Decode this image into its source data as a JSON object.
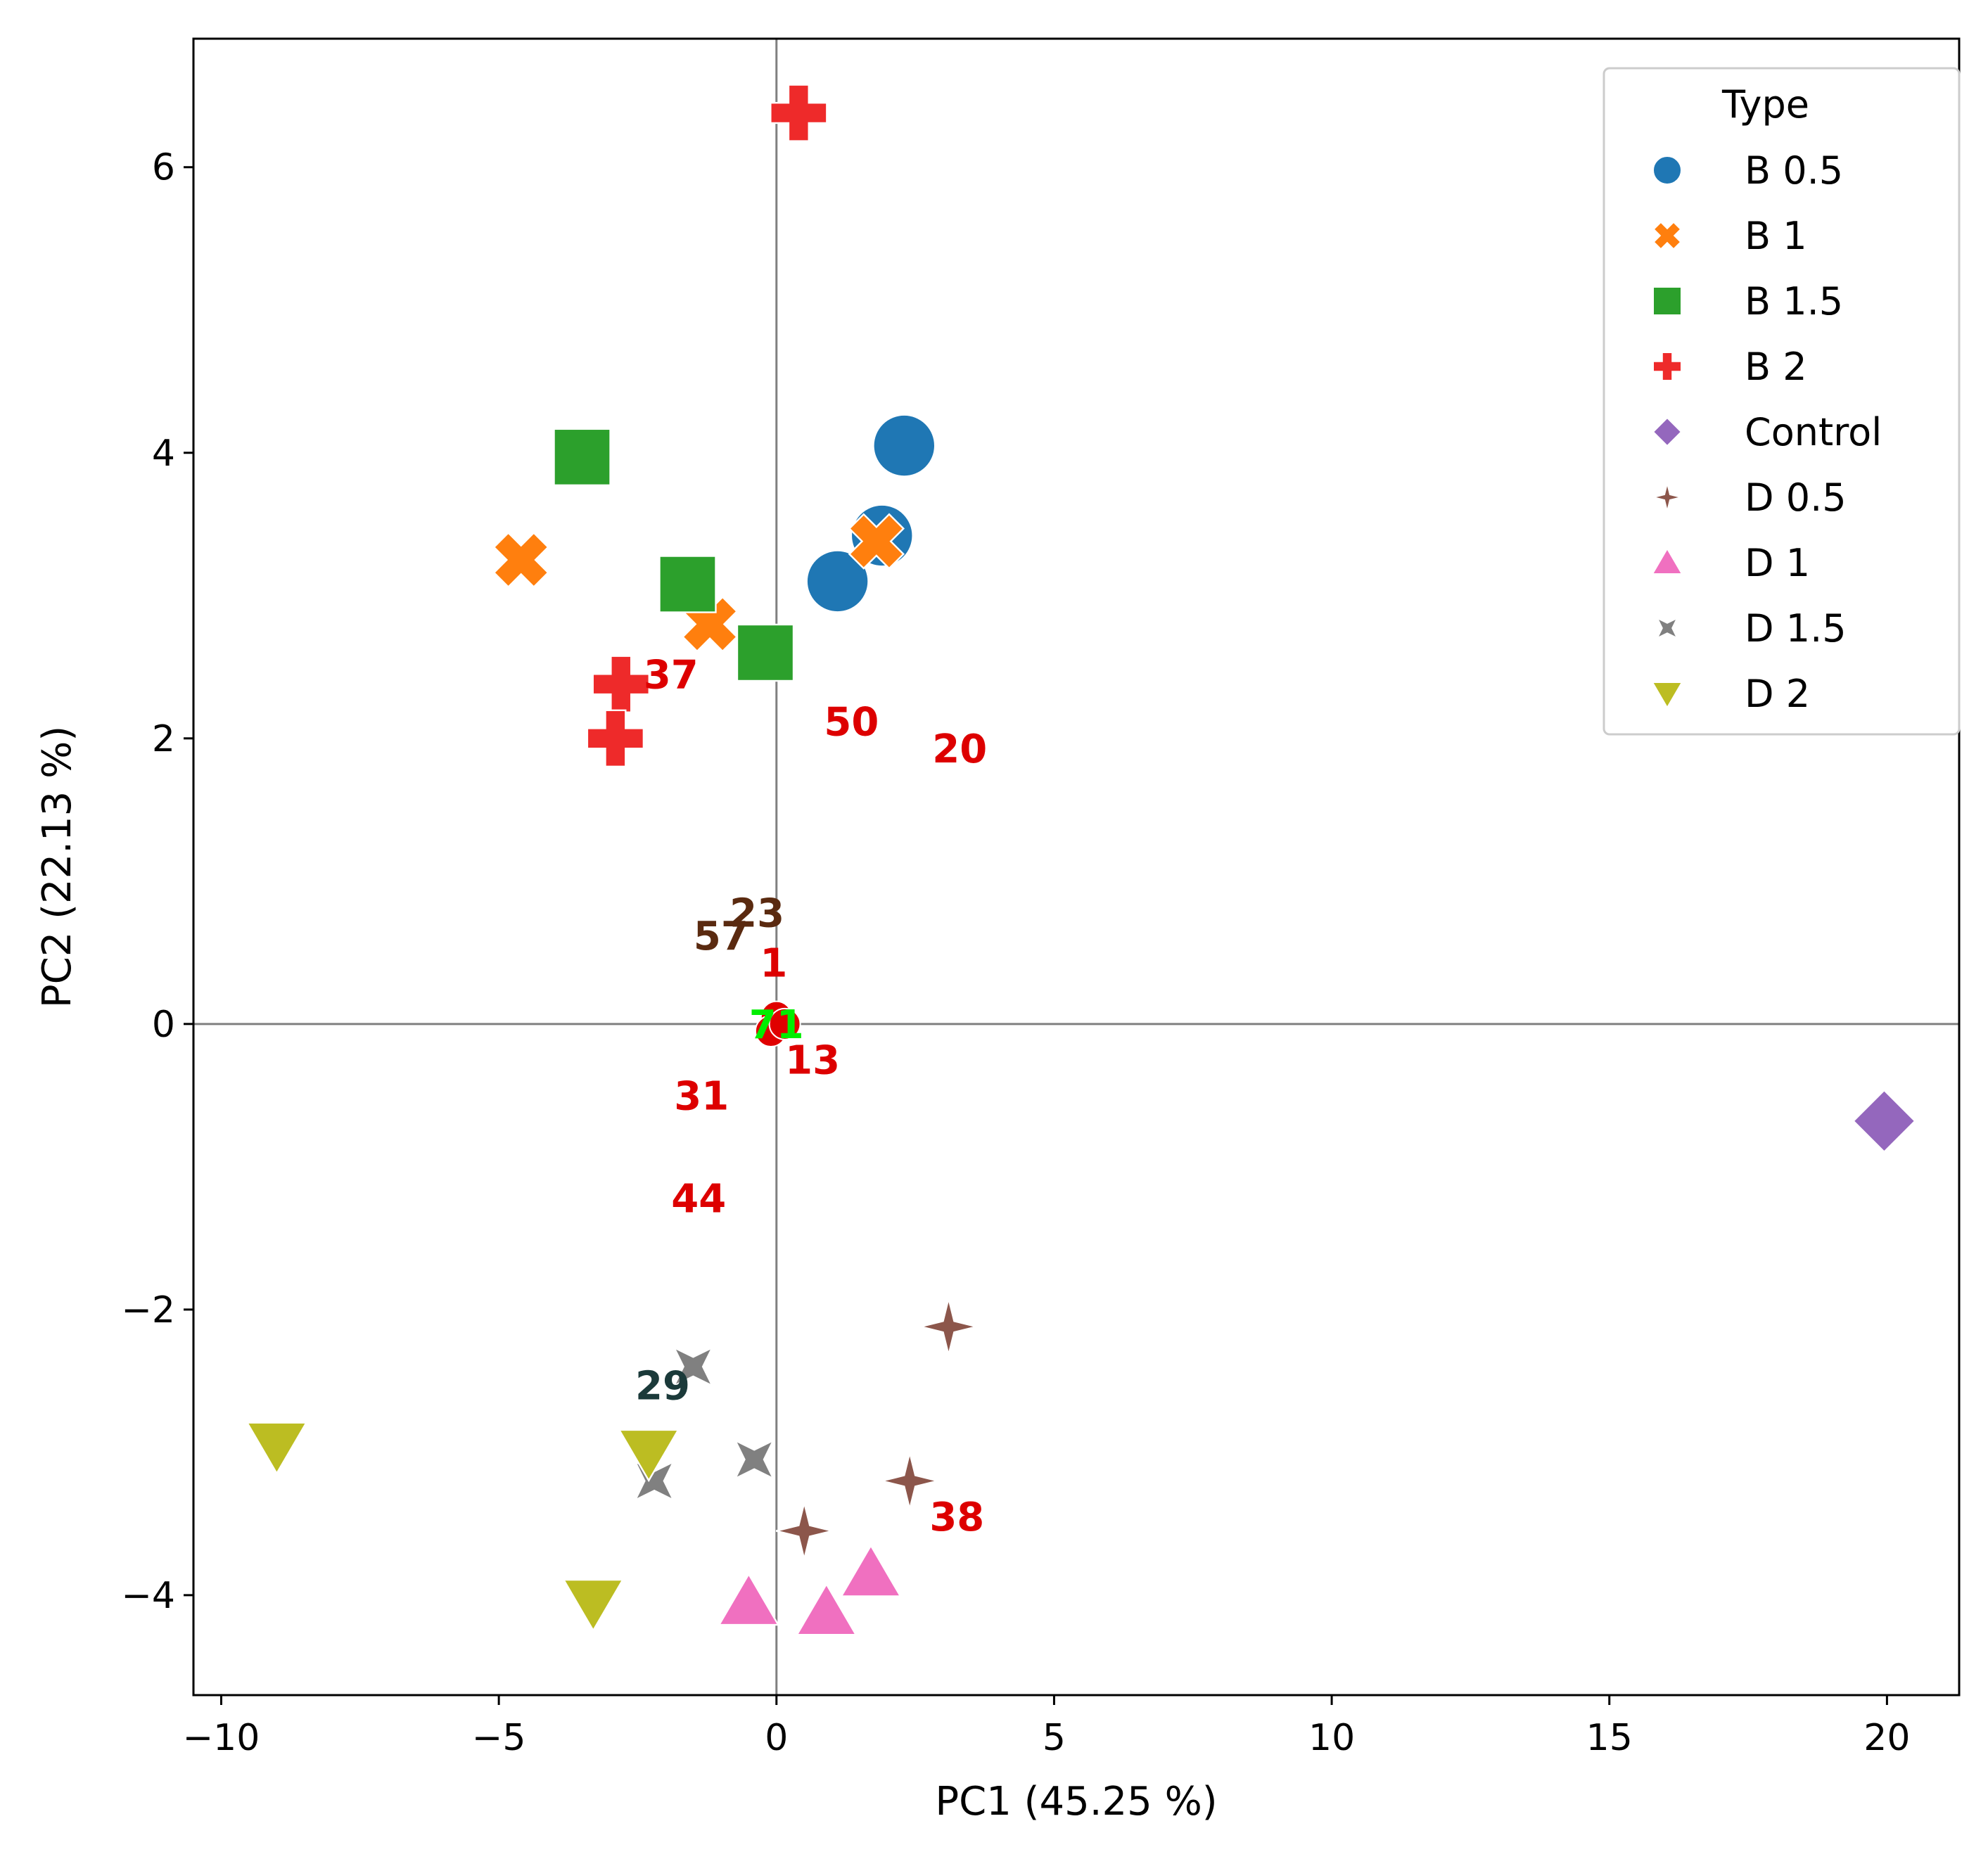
{
  "chart_data": {
    "type": "scatter",
    "xlabel": "PC1 (45.25 %)",
    "ylabel": "PC2 (22.13 %)",
    "xlim": [
      -10.5,
      21.3
    ],
    "ylim": [
      -4.7,
      6.9
    ],
    "xticks": [
      -10,
      -5,
      0,
      5,
      10,
      15,
      20
    ],
    "yticks": [
      -4,
      -2,
      0,
      2,
      4,
      6
    ],
    "xtick_labels": [
      "−10",
      "−5",
      "0",
      "5",
      "10",
      "15",
      "20"
    ],
    "ytick_labels": [
      "−4",
      "−2",
      "0",
      "2",
      "4",
      "6"
    ],
    "reference_lines": {
      "x": 0,
      "y": 0
    },
    "legend": {
      "title": "Type",
      "placement": "top-right"
    },
    "series": [
      {
        "name": "B 0.5",
        "marker": "circle",
        "color": "#1f77b4",
        "points": [
          [
            2.3,
            4.05
          ],
          [
            1.9,
            3.42
          ],
          [
            1.1,
            3.1
          ]
        ]
      },
      {
        "name": "B 1",
        "marker": "x",
        "color": "#ff7f0e",
        "points": [
          [
            -4.6,
            3.25
          ],
          [
            -1.2,
            2.8
          ],
          [
            1.8,
            3.38
          ]
        ]
      },
      {
        "name": "B 1.5",
        "marker": "square",
        "color": "#2ca02c",
        "points": [
          [
            -3.5,
            3.97
          ],
          [
            -1.6,
            3.08
          ],
          [
            -0.2,
            2.6
          ]
        ]
      },
      {
        "name": "B 2",
        "marker": "plus",
        "color": "#ee2a2a",
        "points": [
          [
            0.4,
            6.38
          ],
          [
            -2.8,
            2.38
          ],
          [
            -2.9,
            2.0
          ]
        ]
      },
      {
        "name": "Control",
        "marker": "diamond",
        "color": "#9467bd",
        "points": [
          [
            19.95,
            -0.68
          ]
        ]
      },
      {
        "name": "D 0.5",
        "marker": "star4",
        "color": "#8c564b",
        "points": [
          [
            3.1,
            -2.12
          ],
          [
            2.4,
            -3.2
          ],
          [
            0.5,
            -3.55
          ]
        ]
      },
      {
        "name": "D 1",
        "marker": "triangle-up",
        "color": "#f070c0",
        "points": [
          [
            -0.5,
            -4.05
          ],
          [
            0.9,
            -4.12
          ],
          [
            1.7,
            -3.85
          ]
        ]
      },
      {
        "name": "D 1.5",
        "marker": "star4-thin",
        "color": "#808080",
        "points": [
          [
            -1.5,
            -2.4
          ],
          [
            -0.4,
            -3.05
          ],
          [
            -2.2,
            -3.2
          ]
        ]
      },
      {
        "name": "D 2",
        "marker": "triangle-down",
        "color": "#bcbd22",
        "points": [
          [
            -9.0,
            -2.95
          ],
          [
            -2.3,
            -3.0
          ],
          [
            -3.3,
            -4.05
          ]
        ]
      }
    ],
    "origin_cluster": {
      "color": "#e00000",
      "points": [
        [
          0.0,
          0.05
        ],
        [
          -0.1,
          -0.05
        ],
        [
          0.15,
          0.0
        ]
      ]
    },
    "annotations": [
      {
        "text": "37",
        "x": -1.9,
        "y": 2.45,
        "color": "#dd0000"
      },
      {
        "text": "50",
        "x": 1.35,
        "y": 2.12,
        "color": "#dd0000"
      },
      {
        "text": "20",
        "x": 3.3,
        "y": 1.93,
        "color": "#dd0000"
      },
      {
        "text": "23",
        "x": -0.35,
        "y": 0.78,
        "color": "#5a2a10"
      },
      {
        "text": "57",
        "x": -1.0,
        "y": 0.62,
        "color": "#5a2a10"
      },
      {
        "text": "1",
        "x": -0.05,
        "y": 0.43,
        "color": "#dd0000"
      },
      {
        "text": "71",
        "x": 0.0,
        "y": 0.0,
        "color": "#00ee00"
      },
      {
        "text": "13",
        "x": 0.65,
        "y": -0.25,
        "color": "#dd0000"
      },
      {
        "text": "31",
        "x": -1.35,
        "y": -0.5,
        "color": "#dd0000"
      },
      {
        "text": "44",
        "x": -1.4,
        "y": -1.22,
        "color": "#dd0000"
      },
      {
        "text": "29",
        "x": -2.05,
        "y": -2.53,
        "color": "#1b3a3a"
      },
      {
        "text": "38",
        "x": 3.25,
        "y": -3.45,
        "color": "#dd0000"
      }
    ]
  }
}
